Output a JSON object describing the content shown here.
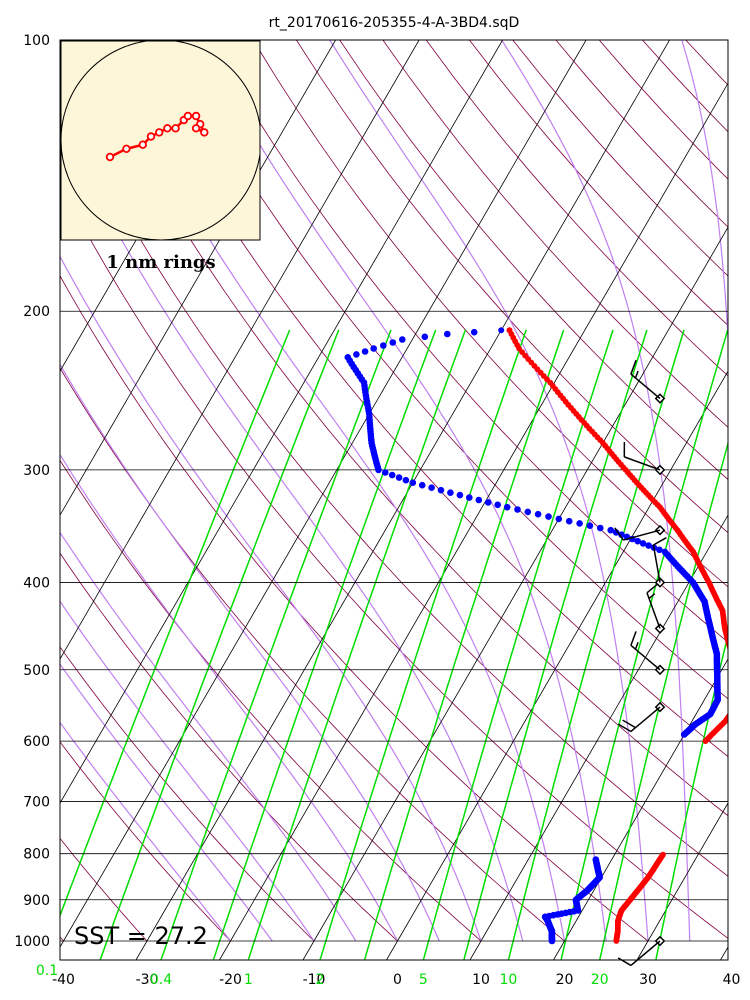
{
  "chart_data": {
    "type": "skew-t",
    "title": "rt_20170616-205355-4-A-3BD4.sqD",
    "pressure_ticks": [
      "100",
      "200",
      "300",
      "400",
      "500",
      "600",
      "700",
      "800",
      "900",
      "1000"
    ],
    "pressure_levels": [
      100,
      200,
      300,
      400,
      500,
      600,
      700,
      800,
      900,
      1000
    ],
    "temperature_ticks": [
      "-40",
      "-30",
      "-20",
      "-10",
      "0",
      "10",
      "20",
      "30",
      "40"
    ],
    "temperature_values": [
      -40,
      -30,
      -20,
      -10,
      0,
      10,
      20,
      30,
      40
    ],
    "xlim": [
      -40,
      40
    ],
    "ylim_hpa": [
      1000,
      100
    ],
    "mixing_ratio_labels": [
      "0.1",
      "0.4",
      "1",
      "2",
      "5",
      "10",
      "20"
    ],
    "mixing_ratio_values": [
      0.1,
      0.4,
      1,
      2,
      5,
      10,
      20
    ],
    "sst_label": "SST = 27.2",
    "inset_label": "1 nm rings",
    "colors": {
      "temperature": "#ff0000",
      "dewpoint": "#0000ff",
      "mixing_ratio": "#00dd00",
      "moist_adiabat": "#c080f0",
      "dry_adiabat": "#800040",
      "isotherm": "#000000",
      "isobar": "#000000",
      "inset_bg": "#fdf6d8"
    },
    "series": [
      {
        "name": "Temperature",
        "points": [
          [
            1000,
            26.2
          ],
          [
            975,
            25.7
          ],
          [
            950,
            25.0
          ],
          [
            925,
            24.7
          ],
          [
            900,
            25.0
          ],
          [
            875,
            25.3
          ],
          [
            850,
            25.6
          ],
          [
            825,
            25.7
          ],
          [
            800,
            25.8
          ],
          [
            600,
            23.0
          ],
          [
            590,
            23.3
          ],
          [
            570,
            24.0
          ],
          [
            550,
            24.2
          ],
          [
            500,
            21.8
          ],
          [
            450,
            17.5
          ],
          [
            430,
            16.0
          ],
          [
            400,
            12.4
          ],
          [
            370,
            8.4
          ],
          [
            350,
            5.0
          ],
          [
            330,
            1.3
          ],
          [
            300,
            -5.4
          ],
          [
            280,
            -10.0
          ],
          [
            260,
            -15.2
          ],
          [
            240,
            -20.5
          ],
          [
            220,
            -26.6
          ],
          [
            210,
            -29.0
          ]
        ]
      },
      {
        "name": "Dewpoint",
        "points": [
          [
            1000,
            18.5
          ],
          [
            975,
            17.8
          ],
          [
            950,
            16.6
          ],
          [
            940,
            16.0
          ],
          [
            925,
            19.5
          ],
          [
            900,
            18.5
          ],
          [
            880,
            19.2
          ],
          [
            850,
            19.8
          ],
          [
            810,
            18.0
          ],
          [
            590,
            20.0
          ],
          [
            575,
            20.6
          ],
          [
            560,
            21.7
          ],
          [
            540,
            21.6
          ],
          [
            510,
            20.0
          ],
          [
            480,
            18.3
          ],
          [
            450,
            15.8
          ],
          [
            420,
            13.2
          ],
          [
            400,
            10.5
          ],
          [
            370,
            5.0
          ],
          [
            350,
            -3.0
          ],
          [
            330,
            -17.0
          ],
          [
            310,
            -30.0
          ],
          [
            300,
            -35.0
          ],
          [
            280,
            -37.7
          ],
          [
            260,
            -40.0
          ],
          [
            240,
            -42.8
          ],
          [
            225,
            -46.5
          ],
          [
            220,
            -44.0
          ],
          [
            215,
            -41.2
          ],
          [
            212,
            -36.2
          ],
          [
            210,
            -30.0
          ]
        ]
      }
    ],
    "hodograph": {
      "u_kt": [
        0,
        2,
        4,
        5,
        6,
        7,
        8,
        9,
        9.5,
        10.5,
        11,
        11.5,
        10.5
      ],
      "v_kt": [
        0,
        1,
        1.5,
        2.5,
        3,
        3.5,
        3.5,
        4.5,
        5,
        5,
        4,
        3,
        3.5
      ]
    },
    "wind_barbs": [
      {
        "pressure": 1000,
        "direction": 230,
        "speed_kt": 10
      },
      {
        "pressure": 550,
        "direction": 230,
        "speed_kt": 20
      },
      {
        "pressure": 500,
        "direction": 310,
        "speed_kt": 15
      },
      {
        "pressure": 450,
        "direction": 340,
        "speed_kt": 15
      },
      {
        "pressure": 400,
        "direction": 350,
        "speed_kt": 10
      },
      {
        "pressure": 350,
        "direction": 255,
        "speed_kt": 10
      },
      {
        "pressure": 300,
        "direction": 290,
        "speed_kt": 10
      },
      {
        "pressure": 250,
        "direction": 310,
        "speed_kt": 15
      }
    ]
  }
}
